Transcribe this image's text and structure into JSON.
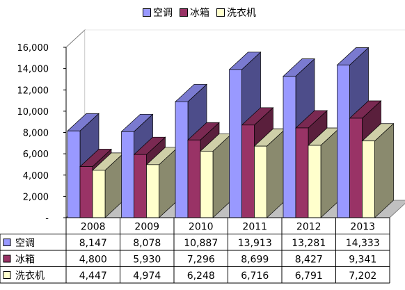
{
  "chart_data": {
    "type": "bar",
    "categories": [
      "2008",
      "2009",
      "2010",
      "2011",
      "2012",
      "2013"
    ],
    "series": [
      {
        "name": "空调",
        "values": [
          8147,
          8078,
          10887,
          13913,
          13281,
          14333
        ],
        "display": [
          "8,147",
          "8,078",
          "10,887",
          "13,913",
          "13,281",
          "14,333"
        ]
      },
      {
        "name": "冰箱",
        "values": [
          4800,
          5930,
          7296,
          8699,
          8427,
          9341
        ],
        "display": [
          "4,800",
          "5,930",
          "7,296",
          "8,699",
          "8,427",
          "9,341"
        ]
      },
      {
        "name": "洗衣机",
        "values": [
          4447,
          4974,
          6248,
          6716,
          6791,
          7202
        ],
        "display": [
          "4,447",
          "4,974",
          "6,248",
          "6,716",
          "6,791",
          "7,202"
        ]
      }
    ],
    "ylim": [
      0,
      16000
    ],
    "y_ticks": [
      {
        "value": 0,
        "label": "-"
      },
      {
        "value": 2000,
        "label": "2,000"
      },
      {
        "value": 4000,
        "label": "4,000"
      },
      {
        "value": 6000,
        "label": "6,000"
      },
      {
        "value": 8000,
        "label": "8,000"
      },
      {
        "value": 10000,
        "label": "10,000"
      },
      {
        "value": 12000,
        "label": "12,000"
      },
      {
        "value": 14000,
        "label": "14,000"
      },
      {
        "value": 16000,
        "label": "16,000"
      }
    ],
    "legend_position": "top",
    "grid": false,
    "data_table": true,
    "colors": {
      "空调": {
        "front": "#9999ff",
        "side": "#4d4d8a",
        "top": "#7a7ad0"
      },
      "冰箱": {
        "front": "#993366",
        "side": "#5a1f3c",
        "top": "#7a2952"
      },
      "洗衣机": {
        "front": "#ffffcc",
        "side": "#8a8a6e",
        "top": "#cfcfa8"
      }
    }
  }
}
